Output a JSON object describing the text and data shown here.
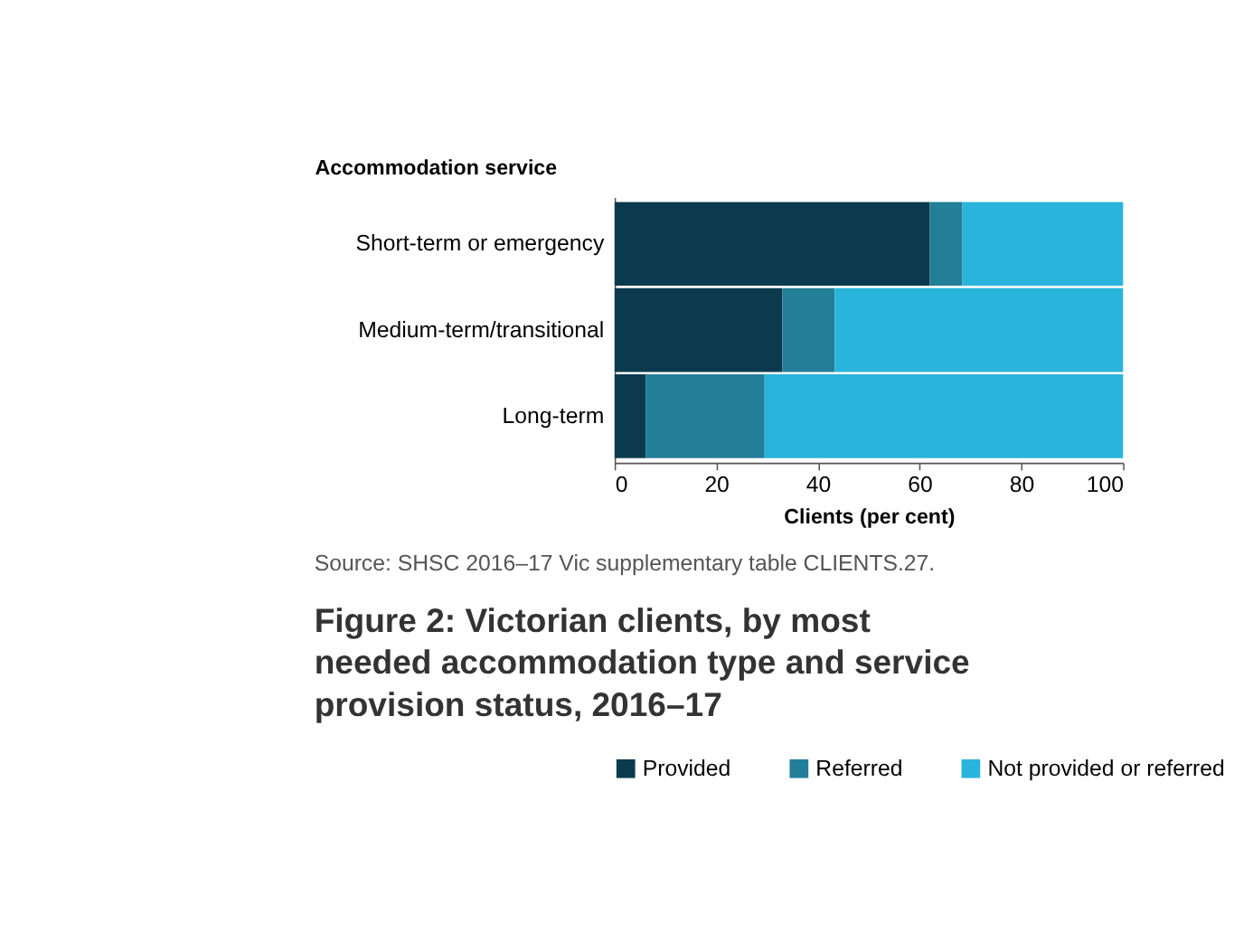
{
  "chart_data": {
    "type": "bar",
    "orientation": "horizontal",
    "stacked": true,
    "title": "Figure 2: Victorian clients, by most needed accommodation type and service provision status, 2016–17",
    "ylabel": "Accommodation service",
    "xlabel": "Clients (per cent)",
    "categories": [
      "Short-term or emergency",
      "Medium-term/transitional",
      "Long-term"
    ],
    "series": [
      {
        "name": "Provided",
        "color": "#0b3a4e",
        "values": [
          62.0,
          33.0,
          6.1
        ]
      },
      {
        "name": "Referred",
        "color": "#237e98",
        "values": [
          6.4,
          10.3,
          23.4
        ]
      },
      {
        "name": "Not provided or referred",
        "color": "#29b4dc",
        "values": [
          31.6,
          56.7,
          70.5
        ]
      }
    ],
    "xlim": [
      0,
      100
    ],
    "xticks": [
      0,
      20,
      40,
      60,
      80,
      100
    ],
    "grid": false,
    "legend": "bottom",
    "annotations": [
      "Source: SHSC 2016–17 Vic supplementary table CLIENTS.27."
    ]
  }
}
